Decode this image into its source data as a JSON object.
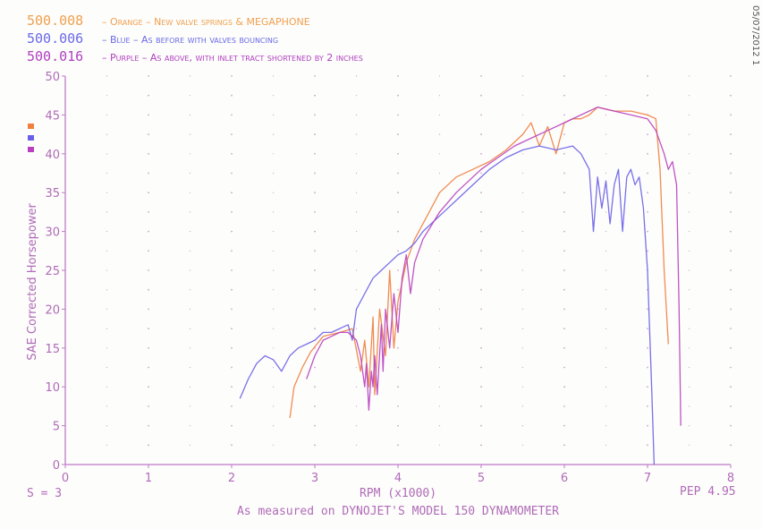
{
  "legend": [
    {
      "id": "500.008",
      "desc": "– Orange – New valve springs & MEGAPHONE",
      "color": "#f0a050"
    },
    {
      "id": "500.006",
      "desc": "– Blue – As before with valves bouncing",
      "color": "#6a6ae8"
    },
    {
      "id": "500.016",
      "desc": "– Purple – As above, with inlet tract shortened by 2 inches",
      "color": "#b040c0"
    }
  ],
  "date_stamp": "05/07/2012 1",
  "footer": {
    "smoothing": "S = 3",
    "xlabel": "RPM (x1000)",
    "pep": "PEP 4.95",
    "note": "As measured on DYNOJET'S MODEL 150 DYNAMOMETER"
  },
  "chart_data": {
    "type": "line",
    "ylabel": "SAE Corrected Horsepower",
    "xlabel": "RPM (x1000)",
    "xlim": [
      0,
      8
    ],
    "ylim": [
      0,
      50
    ],
    "x_ticks": [
      "0",
      "1",
      "2",
      "3",
      "4",
      "5",
      "6",
      "7",
      "8"
    ],
    "y_ticks": [
      "0",
      "5",
      "10",
      "15",
      "20",
      "25",
      "30",
      "35",
      "40",
      "45",
      "50"
    ],
    "grid": "dotted",
    "series": [
      {
        "name": "500.008",
        "color": "#f08040",
        "x": [
          2.7,
          2.75,
          2.85,
          2.95,
          3.1,
          3.3,
          3.45,
          3.55,
          3.6,
          3.65,
          3.7,
          3.72,
          3.78,
          3.85,
          3.9,
          3.95,
          4.0,
          4.1,
          4.2,
          4.3,
          4.4,
          4.5,
          4.7,
          4.9,
          5.1,
          5.3,
          5.5,
          5.6,
          5.7,
          5.8,
          5.9,
          6.0,
          6.1,
          6.2,
          6.3,
          6.4,
          6.6,
          6.8,
          7.0,
          7.1,
          7.15,
          7.2,
          7.25
        ],
        "y": [
          6,
          10,
          12.5,
          14.5,
          16.5,
          17,
          17.5,
          12,
          16,
          10,
          19,
          9,
          20,
          14,
          25,
          15,
          21,
          26,
          29,
          31,
          33,
          35,
          37,
          38,
          39,
          40.5,
          42.5,
          44,
          41,
          43.5,
          40,
          44,
          44.5,
          44.5,
          45,
          46,
          45.5,
          45.5,
          45,
          44.5,
          38,
          25,
          15.5
        ]
      },
      {
        "name": "500.006",
        "color": "#6a60e8",
        "x": [
          2.1,
          2.2,
          2.3,
          2.4,
          2.5,
          2.6,
          2.7,
          2.8,
          2.9,
          3.0,
          3.1,
          3.2,
          3.3,
          3.4,
          3.45,
          3.5,
          3.6,
          3.7,
          3.8,
          3.9,
          4.0,
          4.1,
          4.2,
          4.3,
          4.5,
          4.7,
          4.9,
          5.1,
          5.3,
          5.5,
          5.7,
          5.9,
          6.1,
          6.2,
          6.3,
          6.35,
          6.4,
          6.45,
          6.5,
          6.55,
          6.6,
          6.65,
          6.7,
          6.75,
          6.8,
          6.85,
          6.9,
          6.95,
          7.0,
          7.05,
          7.08
        ],
        "y": [
          8.5,
          11,
          13,
          14,
          13.5,
          12,
          14,
          15,
          15.5,
          16,
          17,
          17,
          17.5,
          18,
          16,
          20,
          22,
          24,
          25,
          26,
          27,
          27.5,
          28.5,
          30,
          32,
          34,
          36,
          38,
          39.5,
          40.5,
          41,
          40.5,
          41,
          40,
          38,
          30,
          37,
          33,
          36.5,
          31,
          36,
          38,
          30,
          37,
          38,
          36,
          37,
          33,
          25,
          10,
          0
        ]
      },
      {
        "name": "500.016",
        "color": "#b840c0",
        "x": [
          2.9,
          3.0,
          3.1,
          3.2,
          3.3,
          3.4,
          3.5,
          3.55,
          3.6,
          3.62,
          3.65,
          3.68,
          3.7,
          3.72,
          3.75,
          3.8,
          3.82,
          3.85,
          3.9,
          3.95,
          4.0,
          4.05,
          4.1,
          4.15,
          4.2,
          4.3,
          4.5,
          4.7,
          4.9,
          5.0,
          5.2,
          5.4,
          5.6,
          5.8,
          6.0,
          6.2,
          6.4,
          6.6,
          6.8,
          7.0,
          7.1,
          7.2,
          7.25,
          7.3,
          7.35,
          7.38,
          7.4
        ],
        "y": [
          11,
          14,
          16,
          16.5,
          17,
          17,
          16,
          14,
          10,
          13,
          7,
          12,
          10,
          14,
          9,
          18,
          12,
          20,
          15,
          22,
          17,
          24,
          27,
          22,
          26,
          29,
          32.5,
          35,
          37,
          38,
          39.5,
          41,
          42,
          43,
          44,
          45,
          46,
          45.5,
          45,
          44.5,
          43,
          40,
          38,
          39,
          36,
          20,
          5
        ]
      }
    ]
  }
}
